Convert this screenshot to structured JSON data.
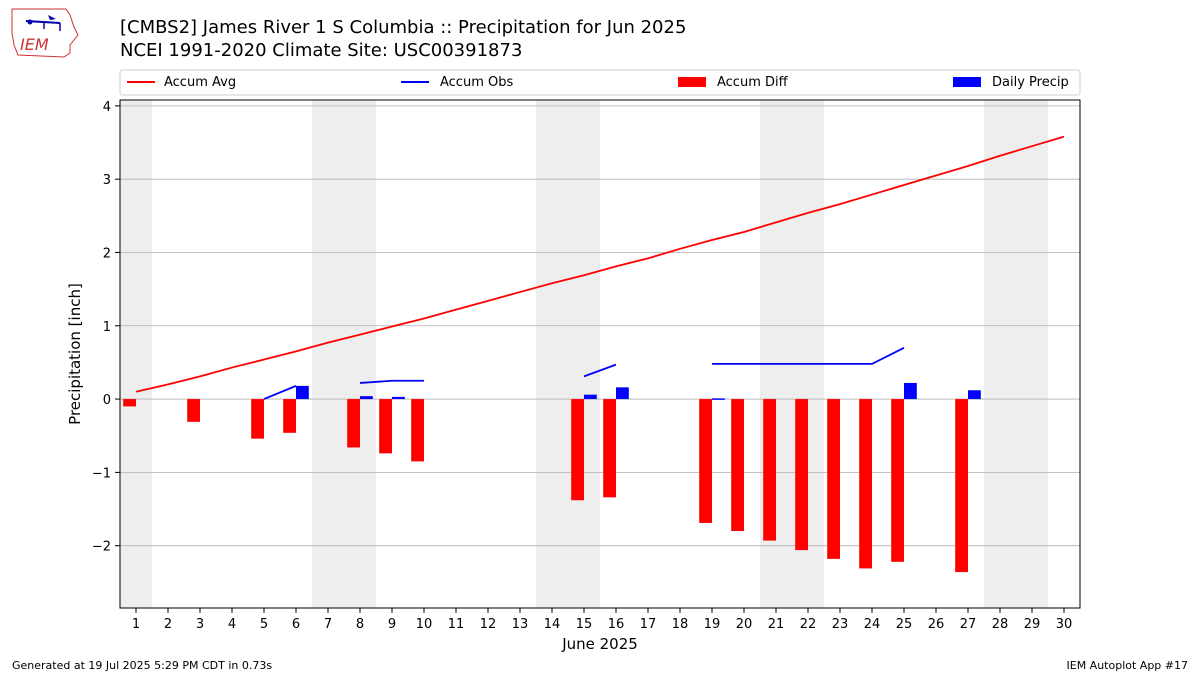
{
  "logo": {
    "label": "IEM"
  },
  "footer": {
    "left": "Generated at 19 Jul 2025 5:29 PM CDT in 0.73s",
    "right": "IEM Autoplot App #17"
  },
  "colors": {
    "avg": "#ff0000",
    "obs": "#0000ff",
    "diff": "#ff0000",
    "daily": "#0000ff",
    "weekend": "#eeeeee",
    "grid": "#b0b0b0"
  },
  "chart_data": {
    "type": "bar",
    "title": "[CMBS2] James River 1 S Columbia :: Precipitation for Jun 2025",
    "subtitle": "NCEI 1991-2020 Climate Site: USC00391873",
    "xlabel": "June 2025",
    "ylabel": "Precipitation [inch]",
    "xlim": [
      0.5,
      30.5
    ],
    "ylim": [
      -2.85,
      4.08
    ],
    "yticks": [
      -2,
      -1,
      0,
      1,
      2,
      3,
      4
    ],
    "grid": true,
    "legend_position": "top",
    "legend": [
      "Accum Avg",
      "Accum Obs",
      "Accum Diff",
      "Daily Precip"
    ],
    "days": [
      1,
      2,
      3,
      4,
      5,
      6,
      7,
      8,
      9,
      10,
      11,
      12,
      13,
      14,
      15,
      16,
      17,
      18,
      19,
      20,
      21,
      22,
      23,
      24,
      25,
      26,
      27,
      28,
      29,
      30
    ],
    "weekend_days": [
      1,
      7,
      8,
      14,
      15,
      21,
      22,
      28,
      29
    ],
    "series": [
      {
        "name": "Accum Avg",
        "type": "line",
        "x": [
          1,
          2,
          3,
          4,
          5,
          6,
          7,
          8,
          9,
          10,
          11,
          12,
          13,
          14,
          15,
          16,
          17,
          18,
          19,
          20,
          21,
          22,
          23,
          24,
          25,
          26,
          27,
          28,
          29,
          30
        ],
        "values": [
          0.1,
          0.2,
          0.31,
          0.43,
          0.54,
          0.65,
          0.77,
          0.88,
          0.99,
          1.1,
          1.22,
          1.34,
          1.46,
          1.58,
          1.69,
          1.81,
          1.92,
          2.05,
          2.17,
          2.28,
          2.41,
          2.54,
          2.66,
          2.79,
          2.92,
          3.05,
          3.18,
          3.32,
          3.45,
          3.58
        ]
      },
      {
        "name": "Accum Obs",
        "type": "line",
        "segments": [
          {
            "x": [
              5,
              6
            ],
            "values": [
              0.0,
              0.18
            ]
          },
          {
            "x": [
              8,
              9,
              10
            ],
            "values": [
              0.22,
              0.25,
              0.25
            ]
          },
          {
            "x": [
              15,
              16
            ],
            "values": [
              0.31,
              0.47
            ]
          },
          {
            "x": [
              19,
              20,
              21,
              22,
              23,
              24,
              25
            ],
            "values": [
              0.48,
              0.48,
              0.48,
              0.48,
              0.48,
              0.48,
              0.7
            ]
          }
        ]
      },
      {
        "name": "Accum Diff",
        "type": "bar",
        "x": [
          1,
          3,
          5,
          6,
          8,
          9,
          10,
          15,
          16,
          19,
          20,
          21,
          22,
          23,
          24,
          25,
          27
        ],
        "values": [
          -0.1,
          -0.31,
          -0.54,
          -0.46,
          -0.66,
          -0.74,
          -0.85,
          -1.38,
          -1.34,
          -1.69,
          -1.8,
          -1.93,
          -2.06,
          -2.18,
          -2.31,
          -2.22,
          -2.36
        ]
      },
      {
        "name": "Daily Precip",
        "type": "bar",
        "x": [
          6,
          8,
          9,
          15,
          16,
          19,
          25,
          27
        ],
        "values": [
          0.18,
          0.04,
          0.03,
          0.06,
          0.16,
          0.01,
          0.22,
          0.12
        ]
      }
    ]
  }
}
